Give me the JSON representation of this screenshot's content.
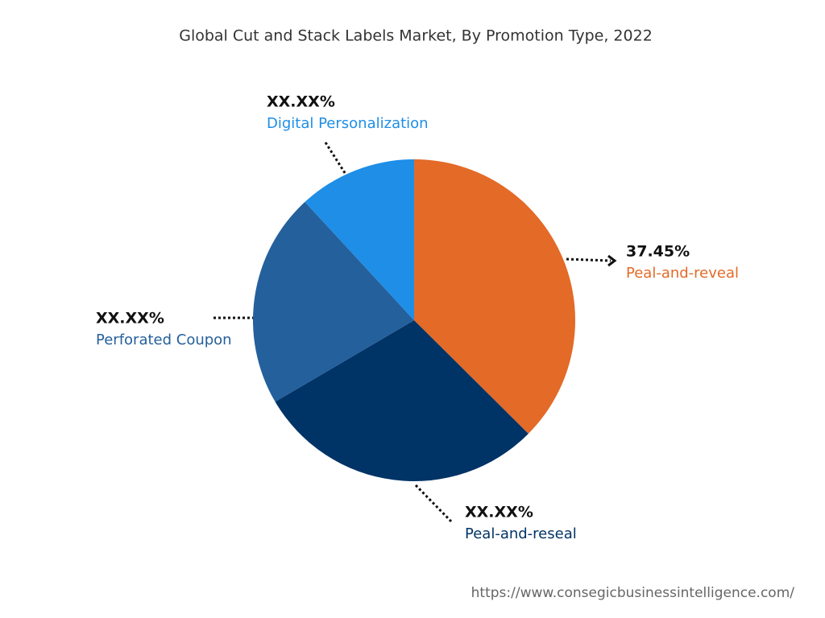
{
  "chart_data": {
    "type": "pie",
    "title": "Global Cut and Stack Labels Market, By Promotion Type, 2022",
    "categories": [
      "Peal-and-reveal",
      "Peal-and-reseal",
      "Perforated Coupon",
      "Digital Personalization"
    ],
    "values": [
      37.45,
      29.1,
      21.6,
      11.85
    ],
    "value_labels": [
      "37.45%",
      "XX.XX%",
      "XX.XX%",
      "XX.XX%"
    ],
    "colors": [
      "#e36a27",
      "#003366",
      "#24609c",
      "#1e8ee6"
    ],
    "source": "https://www.consegicbusinessintelligence.com/"
  }
}
